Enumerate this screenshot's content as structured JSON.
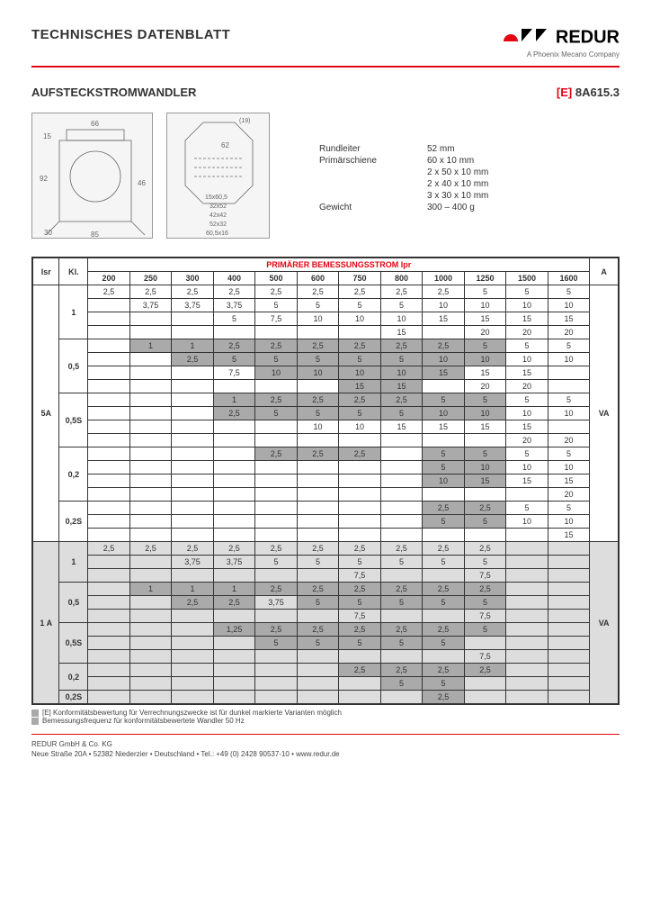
{
  "header": {
    "title": "TECHNISCHES DATENBLATT",
    "logo_text": "REDUR",
    "logo_sub": "A Phoenix Mecano Company"
  },
  "subheader": {
    "title": "AUFSTECKSTROMWANDLER",
    "model_prefix": "[E]",
    "model_code": "8A615.3"
  },
  "diagram1": {
    "dims": [
      "66",
      "15",
      "92",
      "30",
      "85",
      "46"
    ]
  },
  "diagram2": {
    "dims": [
      "(19)",
      "62",
      "15x60,5",
      "32x52",
      "42x42",
      "52x32",
      "60,5x16"
    ]
  },
  "specs": [
    {
      "label": "Rundleiter",
      "value": "52 mm"
    },
    {
      "label": "Primärschiene",
      "value": "60 x 10 mm"
    },
    {
      "label": "",
      "value": "2 x 50 x 10 mm"
    },
    {
      "label": "",
      "value": "2 x 40 x 10 mm"
    },
    {
      "label": "",
      "value": "3 x 30 x 10 mm"
    },
    {
      "label": "Gewicht",
      "value": "300 – 400 g"
    }
  ],
  "table": {
    "header_span_label": "PRIMÄRER BEMESSUNGSSTROM Ipr",
    "isr_label": "Isr",
    "kl_label": "Kl.",
    "a_label": "A",
    "va_label": "VA",
    "current_cols": [
      "200",
      "250",
      "300",
      "400",
      "500",
      "600",
      "750",
      "800",
      "1000",
      "1250",
      "1500",
      "1600"
    ],
    "groups": [
      {
        "isr": "5A",
        "kls": [
          {
            "kl": "1",
            "rows": [
              {
                "c": [
                  "2,5",
                  "2,5",
                  "2,5",
                  "2,5",
                  "2,5",
                  "2,5",
                  "2,5",
                  "2,5",
                  "2,5",
                  "5",
                  "5",
                  "5"
                ],
                "s": []
              },
              {
                "c": [
                  "",
                  "3,75",
                  "3,75",
                  "3,75",
                  "5",
                  "5",
                  "5",
                  "5",
                  "10",
                  "10",
                  "10",
                  "10"
                ],
                "s": []
              },
              {
                "c": [
                  "",
                  "",
                  "",
                  "5",
                  "7,5",
                  "10",
                  "10",
                  "10",
                  "15",
                  "15",
                  "15",
                  "15"
                ],
                "s": []
              },
              {
                "c": [
                  "",
                  "",
                  "",
                  "",
                  "",
                  "",
                  "",
                  "15",
                  "",
                  "20",
                  "20",
                  "20"
                ],
                "s": []
              }
            ]
          },
          {
            "kl": "0,5",
            "rows": [
              {
                "c": [
                  "",
                  "1",
                  "1",
                  "2,5",
                  "2,5",
                  "2,5",
                  "2,5",
                  "2,5",
                  "2,5",
                  "5",
                  "5",
                  "5"
                ],
                "s": [
                  1,
                  2,
                  3,
                  4,
                  5,
                  6,
                  7,
                  8,
                  9
                ]
              },
              {
                "c": [
                  "",
                  "",
                  "2,5",
                  "5",
                  "5",
                  "5",
                  "5",
                  "5",
                  "10",
                  "10",
                  "10",
                  "10"
                ],
                "s": [
                  2,
                  3,
                  4,
                  5,
                  6,
                  7,
                  8,
                  9
                ]
              },
              {
                "c": [
                  "",
                  "",
                  "",
                  "7,5",
                  "10",
                  "10",
                  "10",
                  "10",
                  "15",
                  "15",
                  "15",
                  ""
                ],
                "s": [
                  4,
                  5,
                  6,
                  7,
                  8
                ]
              },
              {
                "c": [
                  "",
                  "",
                  "",
                  "",
                  "",
                  "",
                  "15",
                  "15",
                  "",
                  "20",
                  "20",
                  ""
                ],
                "s": [
                  6,
                  7
                ]
              }
            ]
          },
          {
            "kl": "0,5S",
            "rows": [
              {
                "c": [
                  "",
                  "",
                  "",
                  "1",
                  "2,5",
                  "2,5",
                  "2,5",
                  "2,5",
                  "5",
                  "5",
                  "5",
                  "5"
                ],
                "s": [
                  3,
                  4,
                  5,
                  6,
                  7,
                  8,
                  9
                ]
              },
              {
                "c": [
                  "",
                  "",
                  "",
                  "2,5",
                  "5",
                  "5",
                  "5",
                  "5",
                  "10",
                  "10",
                  "10",
                  "10"
                ],
                "s": [
                  3,
                  4,
                  5,
                  6,
                  7,
                  8,
                  9
                ]
              },
              {
                "c": [
                  "",
                  "",
                  "",
                  "",
                  "",
                  "10",
                  "10",
                  "15",
                  "15",
                  "15",
                  "15",
                  ""
                ],
                "s": []
              },
              {
                "c": [
                  "",
                  "",
                  "",
                  "",
                  "",
                  "",
                  "",
                  "",
                  "",
                  "",
                  "20",
                  "20"
                ],
                "s": []
              }
            ]
          },
          {
            "kl": "0,2",
            "rows": [
              {
                "c": [
                  "",
                  "",
                  "",
                  "",
                  "2,5",
                  "2,5",
                  "2,5",
                  "",
                  "5",
                  "5",
                  "5",
                  "5"
                ],
                "s": [
                  4,
                  5,
                  6,
                  8,
                  9
                ]
              },
              {
                "c": [
                  "",
                  "",
                  "",
                  "",
                  "",
                  "",
                  "",
                  "",
                  "5",
                  "10",
                  "10",
                  "10"
                ],
                "s": [
                  8,
                  9
                ]
              },
              {
                "c": [
                  "",
                  "",
                  "",
                  "",
                  "",
                  "",
                  "",
                  "",
                  "10",
                  "15",
                  "15",
                  "15"
                ],
                "s": [
                  8,
                  9
                ]
              },
              {
                "c": [
                  "",
                  "",
                  "",
                  "",
                  "",
                  "",
                  "",
                  "",
                  "",
                  "",
                  "",
                  "20"
                ],
                "s": []
              }
            ]
          },
          {
            "kl": "0,2S",
            "rows": [
              {
                "c": [
                  "",
                  "",
                  "",
                  "",
                  "",
                  "",
                  "",
                  "",
                  "2,5",
                  "2,5",
                  "5",
                  "5"
                ],
                "s": [
                  8,
                  9
                ]
              },
              {
                "c": [
                  "",
                  "",
                  "",
                  "",
                  "",
                  "",
                  "",
                  "",
                  "5",
                  "5",
                  "10",
                  "10"
                ],
                "s": [
                  8,
                  9
                ]
              },
              {
                "c": [
                  "",
                  "",
                  "",
                  "",
                  "",
                  "",
                  "",
                  "",
                  "",
                  "",
                  "",
                  "15"
                ],
                "s": []
              }
            ]
          }
        ]
      },
      {
        "isr": "1 A",
        "kls": [
          {
            "kl": "1",
            "rows": [
              {
                "c": [
                  "2,5",
                  "2,5",
                  "2,5",
                  "2,5",
                  "2,5",
                  "2,5",
                  "2,5",
                  "2,5",
                  "2,5",
                  "2,5",
                  "",
                  ""
                ],
                "s": []
              },
              {
                "c": [
                  "",
                  "",
                  "3,75",
                  "3,75",
                  "5",
                  "5",
                  "5",
                  "5",
                  "5",
                  "5",
                  "",
                  ""
                ],
                "s": []
              },
              {
                "c": [
                  "",
                  "",
                  "",
                  "",
                  "",
                  "",
                  "7,5",
                  "",
                  "",
                  "7,5",
                  "",
                  ""
                ],
                "s": []
              }
            ]
          },
          {
            "kl": "0,5",
            "rows": [
              {
                "c": [
                  "",
                  "1",
                  "1",
                  "1",
                  "2,5",
                  "2,5",
                  "2,5",
                  "2,5",
                  "2,5",
                  "2,5",
                  "",
                  ""
                ],
                "s": [
                  1,
                  2,
                  3,
                  4,
                  5,
                  6,
                  7,
                  8,
                  9
                ]
              },
              {
                "c": [
                  "",
                  "",
                  "2,5",
                  "2,5",
                  "3,75",
                  "5",
                  "5",
                  "5",
                  "5",
                  "5",
                  "",
                  ""
                ],
                "s": [
                  2,
                  3,
                  5,
                  6,
                  7,
                  8,
                  9
                ]
              },
              {
                "c": [
                  "",
                  "",
                  "",
                  "",
                  "",
                  "",
                  "7,5",
                  "",
                  "",
                  "7,5",
                  "",
                  ""
                ],
                "s": []
              }
            ]
          },
          {
            "kl": "0,5S",
            "rows": [
              {
                "c": [
                  "",
                  "",
                  "",
                  "1,25",
                  "2,5",
                  "2,5",
                  "2,5",
                  "2,5",
                  "2,5",
                  "5",
                  "",
                  ""
                ],
                "s": [
                  3,
                  4,
                  5,
                  6,
                  7,
                  8,
                  9
                ]
              },
              {
                "c": [
                  "",
                  "",
                  "",
                  "",
                  "5",
                  "5",
                  "5",
                  "5",
                  "5",
                  "",
                  "",
                  ""
                ],
                "s": [
                  4,
                  5,
                  6,
                  7,
                  8
                ]
              },
              {
                "c": [
                  "",
                  "",
                  "",
                  "",
                  "",
                  "",
                  "",
                  "",
                  "",
                  "7,5",
                  "",
                  ""
                ],
                "s": []
              }
            ]
          },
          {
            "kl": "0,2",
            "rows": [
              {
                "c": [
                  "",
                  "",
                  "",
                  "",
                  "",
                  "",
                  "2,5",
                  "2,5",
                  "2,5",
                  "2,5",
                  "",
                  ""
                ],
                "s": [
                  6,
                  7,
                  8,
                  9
                ]
              },
              {
                "c": [
                  "",
                  "",
                  "",
                  "",
                  "",
                  "",
                  "",
                  "5",
                  "5",
                  "",
                  "",
                  ""
                ],
                "s": [
                  7,
                  8
                ]
              }
            ]
          },
          {
            "kl": "0,2S",
            "rows": [
              {
                "c": [
                  "",
                  "",
                  "",
                  "",
                  "",
                  "",
                  "",
                  "",
                  "2,5",
                  "",
                  "",
                  ""
                ],
                "s": [
                  8
                ]
              }
            ]
          }
        ]
      }
    ]
  },
  "footnotes": [
    "[E] Konformitätsbewertung für Verrechnungszwecke ist für dunkel markierte Varianten möglich",
    "Bemessungsfrequenz für konformitätsbewertete Wandler 50 Hz"
  ],
  "footer": {
    "company": "REDUR GmbH & Co. KG",
    "address": "Neue Straße 20A • 52382 Niederzier • Deutschland • Tel.: +49 (0) 2428 90537-10 • www.redur.de"
  }
}
